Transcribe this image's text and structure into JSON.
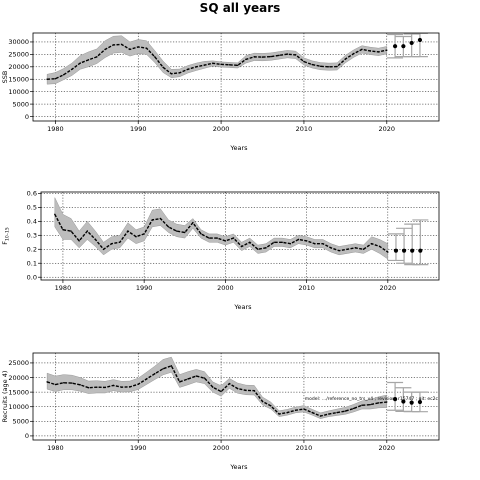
{
  "figure_title": "SQ all years",
  "annotation": "model: …/reference_no_trs_v4 ; revision: r15747 ; git: ec2c",
  "colors": {
    "band": "#bdbdbd",
    "line": "#000000",
    "projection": "#a6a6a6",
    "grid": "#000000"
  },
  "chart_data": [
    {
      "type": "line",
      "title": "",
      "xlabel": "Years",
      "ylabel": "SSB",
      "xlim": [
        1977.3,
        2026.3
      ],
      "ylim": [
        -1800,
        33600
      ],
      "xticks": [
        1980,
        1990,
        2000,
        2010,
        2020
      ],
      "yticks": [
        0,
        5000,
        10000,
        15000,
        20000,
        25000,
        30000
      ],
      "ytick_labels": [
        "0",
        "5000",
        "10000",
        "15000",
        "20000",
        "25000",
        "30000"
      ],
      "grid": true,
      "series": [
        {
          "role": "median",
          "x": [
            1979,
            1980,
            1981,
            1982,
            1983,
            1984,
            1985,
            1986,
            1987,
            1988,
            1989,
            1990,
            1991,
            1992,
            1993,
            1994,
            1995,
            1996,
            1997,
            1998,
            1999,
            2000,
            2001,
            2002,
            2003,
            2004,
            2005,
            2006,
            2007,
            2008,
            2009,
            2010,
            2011,
            2012,
            2013,
            2014,
            2015,
            2016,
            2017,
            2018,
            2019,
            2020
          ],
          "y": [
            15000,
            15200,
            16800,
            19000,
            21500,
            22800,
            24000,
            27000,
            28800,
            29000,
            27000,
            28000,
            27500,
            24000,
            19800,
            17200,
            17600,
            19000,
            20000,
            20700,
            21400,
            21000,
            20800,
            20600,
            23000,
            24000,
            23900,
            24100,
            24600,
            25100,
            24800,
            22100,
            20900,
            20200,
            20000,
            20100,
            23100,
            25300,
            27000,
            26400,
            26000,
            26700
          ]
        },
        {
          "role": "band_upper",
          "x": [
            1979,
            1980,
            1981,
            1982,
            1983,
            1984,
            1985,
            1986,
            1987,
            1988,
            1989,
            1990,
            1991,
            1992,
            1993,
            1994,
            1995,
            1996,
            1997,
            1998,
            1999,
            2000,
            2001,
            2002,
            2003,
            2004,
            2005,
            2006,
            2007,
            2008,
            2009,
            2010,
            2011,
            2012,
            2013,
            2014,
            2015,
            2016,
            2017,
            2018,
            2019,
            2020
          ],
          "y": [
            17000,
            17700,
            19300,
            21500,
            24500,
            26000,
            27200,
            30500,
            32300,
            32500,
            30000,
            31000,
            30500,
            26500,
            22300,
            19000,
            19100,
            20500,
            21500,
            22200,
            22400,
            22000,
            21800,
            21600,
            24500,
            25500,
            25400,
            25600,
            26100,
            26600,
            26300,
            23600,
            22400,
            21700,
            21500,
            21600,
            24600,
            26800,
            28500,
            27900,
            27500,
            28200
          ]
        },
        {
          "role": "band_lower",
          "x": [
            1979,
            1980,
            1981,
            1982,
            1983,
            1984,
            1985,
            1986,
            1987,
            1988,
            1989,
            1990,
            1991,
            1992,
            1993,
            1994,
            1995,
            1996,
            1997,
            1998,
            1999,
            2000,
            2001,
            2002,
            2003,
            2004,
            2005,
            2006,
            2007,
            2008,
            2009,
            2010,
            2011,
            2012,
            2013,
            2014,
            2015,
            2016,
            2017,
            2018,
            2019,
            2020
          ],
          "y": [
            13000,
            13200,
            14800,
            16500,
            19000,
            20000,
            21300,
            23700,
            25500,
            25800,
            24300,
            25300,
            25000,
            21700,
            17700,
            15600,
            16000,
            17500,
            18500,
            19400,
            20300,
            19900,
            19700,
            19500,
            21500,
            22500,
            22400,
            22600,
            23100,
            23600,
            23300,
            20700,
            19500,
            18800,
            18600,
            18700,
            21600,
            23800,
            25500,
            24900,
            24500,
            25200
          ]
        },
        {
          "role": "projection",
          "x": [
            2021,
            2022,
            2023,
            2024
          ],
          "y": [
            28300,
            28300,
            29600,
            30800
          ],
          "upper": [
            33000,
            32200,
            33200,
            33500
          ],
          "lower": [
            23600,
            24100,
            24100,
            24100
          ]
        }
      ]
    },
    {
      "type": "line",
      "title": "",
      "xlabel": "Years",
      "ylabel": "F",
      "ylabel_sub": "10–15",
      "xlim": [
        1977.3,
        2026.3
      ],
      "ylim": [
        -0.02,
        0.61
      ],
      "xticks": [
        1980,
        1990,
        2000,
        2010,
        2020
      ],
      "yticks": [
        0.0,
        0.1,
        0.2,
        0.3,
        0.4,
        0.5,
        0.6
      ],
      "ytick_labels": [
        "0.0",
        "0.1",
        "0.2",
        "0.3",
        "0.4",
        "0.5",
        "0.6"
      ],
      "grid": true,
      "series": [
        {
          "role": "median",
          "x": [
            1979,
            1980,
            1981,
            1982,
            1983,
            1984,
            1985,
            1986,
            1987,
            1988,
            1989,
            1990,
            1991,
            1992,
            1993,
            1994,
            1995,
            1996,
            1997,
            1998,
            1999,
            2000,
            2001,
            2002,
            2003,
            2004,
            2005,
            2006,
            2007,
            2008,
            2009,
            2010,
            2011,
            2012,
            2013,
            2014,
            2015,
            2016,
            2017,
            2018,
            2019,
            2020
          ],
          "y": [
            0.45,
            0.34,
            0.33,
            0.26,
            0.33,
            0.27,
            0.2,
            0.24,
            0.25,
            0.33,
            0.29,
            0.31,
            0.41,
            0.42,
            0.36,
            0.33,
            0.32,
            0.39,
            0.31,
            0.28,
            0.28,
            0.26,
            0.28,
            0.22,
            0.25,
            0.2,
            0.21,
            0.25,
            0.25,
            0.24,
            0.27,
            0.26,
            0.24,
            0.24,
            0.21,
            0.19,
            0.2,
            0.21,
            0.2,
            0.24,
            0.22,
            0.18
          ]
        },
        {
          "role": "band_upper",
          "x": [
            1979,
            1980,
            1981,
            1982,
            1983,
            1984,
            1985,
            1986,
            1987,
            1988,
            1989,
            1990,
            1991,
            1992,
            1993,
            1994,
            1995,
            1996,
            1997,
            1998,
            1999,
            2000,
            2001,
            2002,
            2003,
            2004,
            2005,
            2006,
            2007,
            2008,
            2009,
            2010,
            2011,
            2012,
            2013,
            2014,
            2015,
            2016,
            2017,
            2018,
            2019,
            2020
          ],
          "y": [
            0.57,
            0.45,
            0.42,
            0.33,
            0.4,
            0.33,
            0.25,
            0.29,
            0.3,
            0.39,
            0.34,
            0.36,
            0.48,
            0.49,
            0.41,
            0.38,
            0.37,
            0.42,
            0.34,
            0.31,
            0.31,
            0.29,
            0.31,
            0.25,
            0.28,
            0.23,
            0.24,
            0.28,
            0.28,
            0.27,
            0.3,
            0.29,
            0.27,
            0.27,
            0.24,
            0.22,
            0.23,
            0.24,
            0.23,
            0.29,
            0.27,
            0.24
          ]
        },
        {
          "role": "band_lower",
          "x": [
            1979,
            1980,
            1981,
            1982,
            1983,
            1984,
            1985,
            1986,
            1987,
            1988,
            1989,
            1990,
            1991,
            1992,
            1993,
            1994,
            1995,
            1996,
            1997,
            1998,
            1999,
            2000,
            2001,
            2002,
            2003,
            2004,
            2005,
            2006,
            2007,
            2008,
            2009,
            2010,
            2011,
            2012,
            2013,
            2014,
            2015,
            2016,
            2017,
            2018,
            2019,
            2020
          ],
          "y": [
            0.36,
            0.27,
            0.27,
            0.21,
            0.27,
            0.22,
            0.16,
            0.2,
            0.21,
            0.28,
            0.24,
            0.26,
            0.36,
            0.37,
            0.32,
            0.29,
            0.28,
            0.35,
            0.28,
            0.25,
            0.25,
            0.23,
            0.25,
            0.19,
            0.22,
            0.17,
            0.18,
            0.22,
            0.22,
            0.21,
            0.24,
            0.23,
            0.21,
            0.21,
            0.18,
            0.16,
            0.17,
            0.18,
            0.17,
            0.2,
            0.17,
            0.13
          ]
        },
        {
          "role": "projection",
          "x": [
            2021,
            2022,
            2023,
            2024
          ],
          "y": [
            0.19,
            0.19,
            0.19,
            0.19
          ],
          "upper": [
            0.31,
            0.35,
            0.38,
            0.41
          ],
          "lower": [
            0.12,
            0.1,
            0.09,
            0.09
          ]
        }
      ]
    },
    {
      "type": "line",
      "title": "",
      "xlabel": "Years",
      "ylabel": "Recruits (age 4)",
      "xlim": [
        1977.3,
        2026.3
      ],
      "ylim": [
        -1400,
        28400
      ],
      "xticks": [
        1980,
        1990,
        2000,
        2010,
        2020
      ],
      "yticks": [
        0,
        5000,
        10000,
        15000,
        20000,
        25000
      ],
      "ytick_labels": [
        "0",
        "5000",
        "10000",
        "15000",
        "20000",
        "25000"
      ],
      "grid": true,
      "series": [
        {
          "role": "median",
          "x": [
            1979,
            1980,
            1981,
            1982,
            1983,
            1984,
            1985,
            1986,
            1987,
            1988,
            1989,
            1990,
            1991,
            1992,
            1993,
            1994,
            1995,
            1996,
            1997,
            1998,
            1999,
            2000,
            2001,
            2002,
            2003,
            2004,
            2005,
            2006,
            2007,
            2008,
            2009,
            2010,
            2011,
            2012,
            2013,
            2014,
            2015,
            2016,
            2017,
            2018,
            2019,
            2020
          ],
          "y": [
            18500,
            17600,
            18200,
            18100,
            17500,
            16500,
            16700,
            16600,
            17300,
            16700,
            16800,
            17700,
            19500,
            21300,
            23000,
            24000,
            18500,
            19500,
            20500,
            19800,
            16700,
            15200,
            17900,
            16200,
            15600,
            15500,
            11800,
            10300,
            7500,
            8000,
            8800,
            9200,
            8000,
            6800,
            7500,
            8000,
            8500,
            9400,
            10500,
            10700,
            11300,
            11600
          ]
        },
        {
          "role": "band_upper",
          "x": [
            1979,
            1980,
            1981,
            1982,
            1983,
            1984,
            1985,
            1986,
            1987,
            1988,
            1989,
            1990,
            1991,
            1992,
            1993,
            1994,
            1995,
            1996,
            1997,
            1998,
            1999,
            2000,
            2001,
            2002,
            2003,
            2004,
            2005,
            2006,
            2007,
            2008,
            2009,
            2010,
            2011,
            2012,
            2013,
            2014,
            2015,
            2016,
            2017,
            2018,
            2019,
            2020
          ],
          "y": [
            21500,
            20500,
            21000,
            20800,
            20000,
            18800,
            18900,
            18700,
            19300,
            18700,
            18800,
            19800,
            21800,
            23900,
            26200,
            27000,
            21000,
            22000,
            22800,
            22000,
            18500,
            17200,
            19700,
            18100,
            17400,
            17300,
            13300,
            11600,
            8600,
            9100,
            9900,
            10400,
            9100,
            7900,
            8600,
            9200,
            9800,
            10800,
            12000,
            12500,
            13400,
            14000
          ]
        },
        {
          "role": "band_lower",
          "x": [
            1979,
            1980,
            1981,
            1982,
            1983,
            1984,
            1985,
            1986,
            1987,
            1988,
            1989,
            1990,
            1991,
            1992,
            1993,
            1994,
            1995,
            1996,
            1997,
            1998,
            1999,
            2000,
            2001,
            2002,
            2003,
            2004,
            2005,
            2006,
            2007,
            2008,
            2009,
            2010,
            2011,
            2012,
            2013,
            2014,
            2015,
            2016,
            2017,
            2018,
            2019,
            2020
          ],
          "y": [
            16000,
            15200,
            15800,
            15800,
            15300,
            14500,
            14700,
            14700,
            15500,
            15000,
            15100,
            15900,
            17600,
            19300,
            20900,
            21800,
            16600,
            17500,
            18500,
            17900,
            15000,
            13600,
            16300,
            14600,
            14100,
            14000,
            10600,
            9200,
            6600,
            7100,
            7900,
            8200,
            7100,
            5900,
            6600,
            7000,
            7400,
            8200,
            9200,
            9200,
            9600,
            9700
          ]
        },
        {
          "role": "projection",
          "x": [
            2021,
            2022,
            2023,
            2024
          ],
          "y": [
            12600,
            11800,
            11400,
            11600
          ],
          "upper": [
            18300,
            16500,
            15000,
            15000
          ],
          "lower": [
            8800,
            8400,
            8300,
            8300
          ]
        }
      ]
    }
  ]
}
